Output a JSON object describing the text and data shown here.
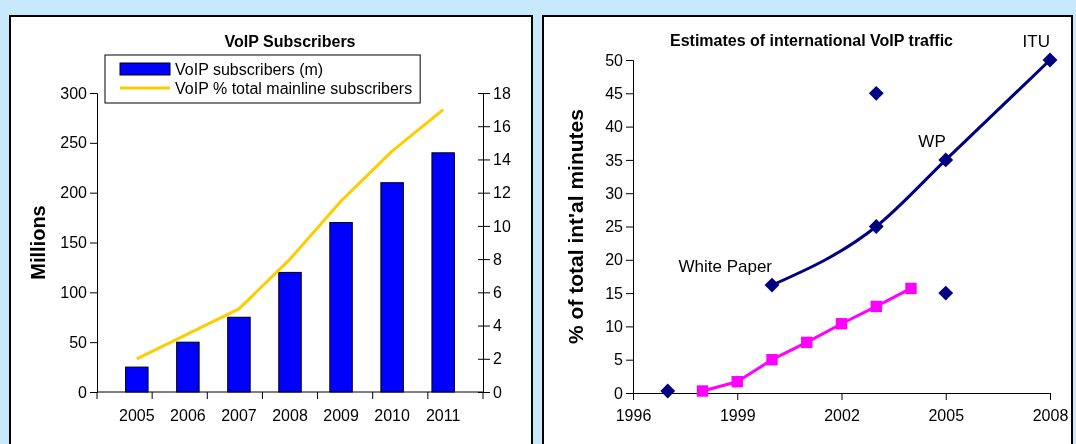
{
  "chart_data": [
    {
      "type": "bar",
      "title": "VoIP Subscribers",
      "ylabel": "Millions",
      "categories": [
        "2005",
        "2006",
        "2007",
        "2008",
        "2009",
        "2010",
        "2011"
      ],
      "series": [
        {
          "name": "VoIP subscribers (m)",
          "color": "#0000ff",
          "values": [
            25,
            50,
            75,
            120,
            170,
            210,
            240
          ]
        },
        {
          "name": "VoIP % total mainline subscribers",
          "type": "line",
          "axis": "y2",
          "color": "#ffcc00",
          "values": [
            2,
            3.5,
            5,
            8,
            11.5,
            14.5,
            17
          ]
        }
      ],
      "ylim": [
        0,
        300
      ],
      "yticks": [
        0,
        50,
        100,
        150,
        200,
        250,
        300
      ],
      "y2lim": [
        0,
        18
      ],
      "y2ticks": [
        0,
        2,
        4,
        6,
        8,
        10,
        12,
        14,
        16,
        18
      ],
      "legend": "top",
      "grid": false
    },
    {
      "type": "line",
      "title": "Estimates of international VoIP traffic",
      "ylabel": "% of total int'al minutes",
      "series": [
        {
          "color": "#000080",
          "marker": "diamond",
          "x": [
            2000,
            2003,
            2005,
            2008
          ],
          "values": [
            16.2,
            25,
            35,
            50
          ]
        },
        {
          "type": "scatter",
          "color": "#000080",
          "marker": "diamond",
          "x": [
            1997,
            2003,
            2005
          ],
          "values": [
            0.3,
            45,
            15
          ]
        },
        {
          "type": "line",
          "color": "#ff00ff",
          "marker": "square",
          "x": [
            1998,
            1999,
            2000,
            2001,
            2002,
            2003,
            2004
          ],
          "values": [
            0.3,
            1.7,
            5,
            7.6,
            10.4,
            13,
            15.7
          ]
        }
      ],
      "xlim": [
        1996,
        2008
      ],
      "xticks": [
        1996,
        1999,
        2002,
        2005,
        2008
      ],
      "ylim": [
        0,
        50
      ],
      "yticks": [
        0,
        5,
        10,
        15,
        20,
        25,
        30,
        35,
        40,
        45,
        50
      ],
      "annotations": [
        {
          "text": "ITU",
          "x": 2008,
          "y": 50
        },
        {
          "text": "White Paper",
          "x": 2000,
          "y": 16.2
        },
        {
          "text": "WP",
          "x": 2005,
          "y": 35
        }
      ],
      "grid": false
    }
  ]
}
